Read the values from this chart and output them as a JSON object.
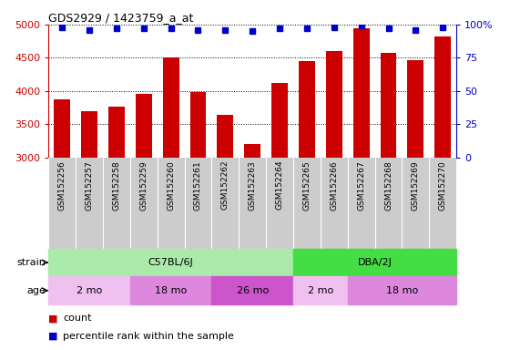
{
  "title": "GDS2929 / 1423759_a_at",
  "samples": [
    "GSM152256",
    "GSM152257",
    "GSM152258",
    "GSM152259",
    "GSM152260",
    "GSM152261",
    "GSM152262",
    "GSM152263",
    "GSM152264",
    "GSM152265",
    "GSM152266",
    "GSM152267",
    "GSM152268",
    "GSM152269",
    "GSM152270"
  ],
  "counts": [
    3870,
    3700,
    3760,
    3950,
    4500,
    3980,
    3640,
    3200,
    4120,
    4450,
    4600,
    4950,
    4580,
    4470,
    4820
  ],
  "percentile_ranks": [
    98,
    96,
    97,
    97,
    97,
    96,
    96,
    95,
    97,
    97,
    98,
    99,
    97,
    96,
    98
  ],
  "ylim_left": [
    3000,
    5000
  ],
  "ylim_right": [
    0,
    100
  ],
  "yticks_left": [
    3000,
    3500,
    4000,
    4500,
    5000
  ],
  "yticks_right": [
    0,
    25,
    50,
    75,
    100
  ],
  "bar_color": "#cc0000",
  "dot_color": "#0000cc",
  "bg_color": "#ffffff",
  "grid_color": "#000000",
  "axis_label_color_left": "#cc0000",
  "axis_label_color_right": "#0000cc",
  "tick_label_area_color": "#cccccc",
  "strain_row": [
    {
      "label": "C57BL/6J",
      "start": 0,
      "end": 9,
      "color": "#aaeaaa"
    },
    {
      "label": "DBA/2J",
      "start": 9,
      "end": 15,
      "color": "#44dd44"
    }
  ],
  "age_row": [
    {
      "label": "2 mo",
      "start": 0,
      "end": 3,
      "color": "#f0c0f0"
    },
    {
      "label": "18 mo",
      "start": 3,
      "end": 6,
      "color": "#dd88dd"
    },
    {
      "label": "26 mo",
      "start": 6,
      "end": 9,
      "color": "#cc55cc"
    },
    {
      "label": "2 mo",
      "start": 9,
      "end": 11,
      "color": "#f0c0f0"
    },
    {
      "label": "18 mo",
      "start": 11,
      "end": 15,
      "color": "#dd88dd"
    }
  ],
  "strain_label": "strain",
  "age_label": "age"
}
